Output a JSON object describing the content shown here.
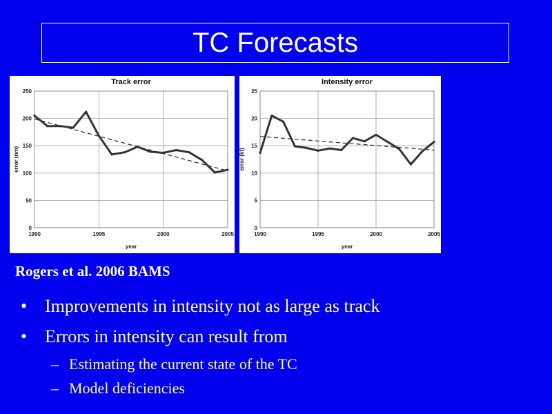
{
  "slide": {
    "title": "TC Forecasts",
    "citation": "Rogers et al. 2006 BAMS",
    "bullets": [
      {
        "text": "Improvements in intensity not as large as track"
      },
      {
        "text": "Errors in intensity can result from"
      }
    ],
    "sub_bullets": [
      {
        "text": "Estimating the current state of the TC"
      },
      {
        "text": "Model deficiencies"
      }
    ],
    "bullet_mark": "•",
    "sub_mark": "–"
  },
  "colors": {
    "background": "#0000ee",
    "title_text": "#ffffff",
    "bullet_text": "#ffff99",
    "series_line": "#333333",
    "grid": "#9a9a9a"
  },
  "chart_data": [
    {
      "id": "track",
      "type": "line",
      "title": "Track error",
      "xlabel": "year",
      "ylabel": "error (nm)",
      "xlim": [
        1990,
        2005
      ],
      "ylim": [
        0,
        250
      ],
      "xticks": [
        1990,
        1995,
        2000,
        2005
      ],
      "yticks": [
        0,
        50,
        100,
        150,
        200,
        250
      ],
      "grid": true,
      "series": [
        {
          "x": [
            1990,
            1991,
            1992,
            1993,
            1994,
            1995,
            1996,
            1997,
            1998,
            1999,
            2000,
            2001,
            2002,
            2003,
            2004,
            2005
          ],
          "values": [
            205,
            186,
            186,
            183,
            212,
            168,
            134,
            138,
            148,
            139,
            137,
            142,
            138,
            124,
            101,
            106
          ]
        }
      ],
      "trend": {
        "style": "dashed",
        "x": [
          1990,
          2005
        ],
        "values": [
          199,
          104
        ]
      }
    },
    {
      "id": "intensity",
      "type": "line",
      "title": "Intensity error",
      "xlabel": "year",
      "ylabel": "error (kt)",
      "xlim": [
        1990,
        2005
      ],
      "ylim": [
        0,
        25
      ],
      "xticks": [
        1990,
        1995,
        2000,
        2005
      ],
      "yticks": [
        0,
        5,
        10,
        15,
        20,
        25
      ],
      "grid": true,
      "series": [
        {
          "x": [
            1990,
            1991,
            1992,
            1993,
            1994,
            1995,
            1996,
            1997,
            1998,
            1999,
            2000,
            2001,
            2002,
            2003,
            2004,
            2005
          ],
          "values": [
            13.7,
            20.5,
            19.4,
            14.9,
            14.6,
            14.1,
            14.5,
            14.2,
            16.4,
            15.8,
            17.0,
            15.7,
            14.4,
            11.6,
            14.0,
            15.7
          ]
        }
      ],
      "trend": {
        "style": "dashed",
        "x": [
          1990,
          2005
        ],
        "values": [
          16.7,
          14.2
        ]
      }
    }
  ]
}
